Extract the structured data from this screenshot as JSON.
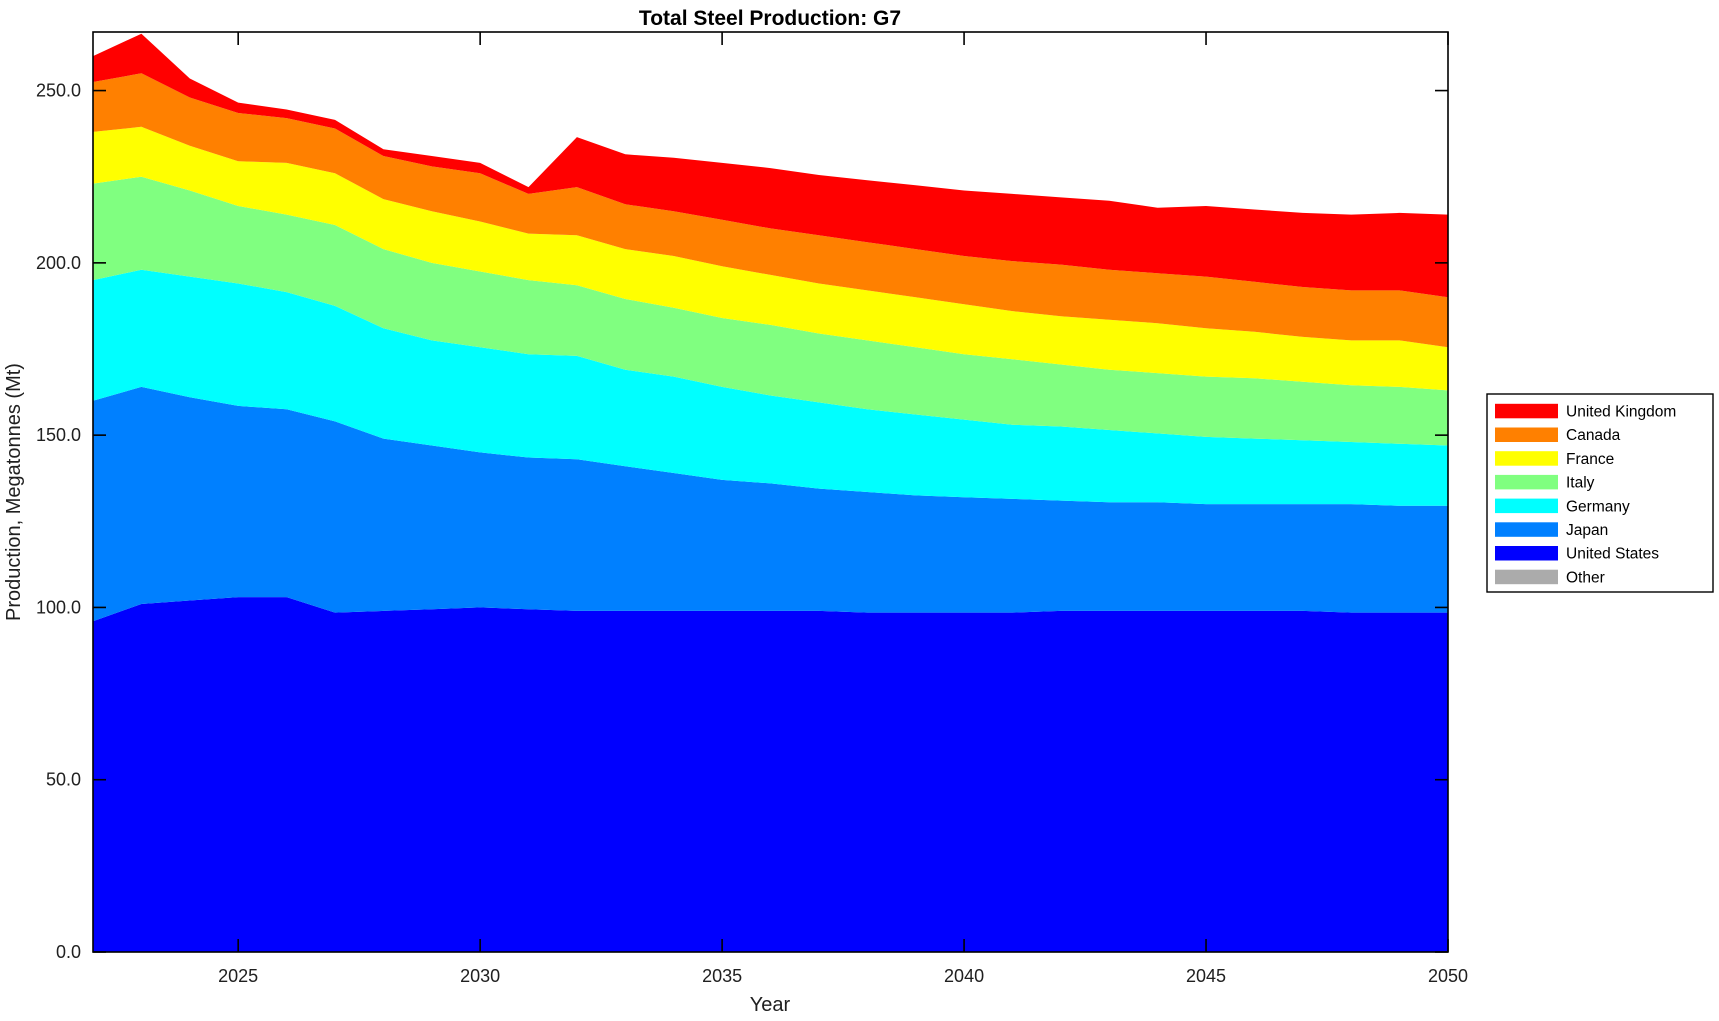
{
  "page": {
    "background": "#FFFFFF",
    "frame_color": "#000000",
    "tick_label_color": "#202020"
  },
  "chart_data": {
    "type": "area",
    "stacked": true,
    "title": "Total Steel Production: G7",
    "xlabel": "Year",
    "ylabel": "Production, Megatonnes (Mt)",
    "xlim": [
      2022,
      2050
    ],
    "ylim": [
      0,
      267
    ],
    "x_ticks": [
      2025,
      2030,
      2035,
      2040,
      2045,
      2050
    ],
    "y_ticks": [
      0,
      50,
      100,
      150,
      200,
      250
    ],
    "y_tick_decimals": 1,
    "grid": false,
    "legend_position": "right-outside",
    "x": [
      2022,
      2023,
      2024,
      2025,
      2026,
      2027,
      2028,
      2029,
      2030,
      2031,
      2032,
      2033,
      2034,
      2035,
      2036,
      2037,
      2038,
      2039,
      2040,
      2041,
      2042,
      2043,
      2044,
      2045,
      2046,
      2047,
      2048,
      2049,
      2050
    ],
    "stack_order_bottom_to_top": [
      "United States",
      "Japan",
      "Germany",
      "Italy",
      "France",
      "Canada",
      "United Kingdom",
      "Other"
    ],
    "series": [
      {
        "name": "United Kingdom",
        "color": "#FF0000",
        "values": [
          7.5,
          11.5,
          5.5,
          3,
          2.5,
          2.5,
          2,
          3,
          3,
          2,
          14.5,
          14.5,
          15.5,
          16.5,
          17.5,
          17.5,
          18,
          18.5,
          19,
          19.5,
          19.5,
          20,
          19,
          20.5,
          21,
          21.5,
          22,
          22.5,
          24
        ]
      },
      {
        "name": "Canada",
        "color": "#FF8000",
        "values": [
          14.5,
          15.5,
          14,
          14,
          13,
          13,
          12.5,
          13,
          14,
          11.5,
          14,
          13,
          13,
          13.5,
          13.5,
          14,
          14,
          14,
          14,
          14.5,
          15,
          14.5,
          14.5,
          15,
          14.5,
          14.5,
          14.5,
          14.5,
          14.5
        ]
      },
      {
        "name": "France",
        "color": "#FFFF00",
        "values": [
          15,
          14.5,
          13,
          13,
          15,
          15,
          14.5,
          15,
          14.5,
          13.5,
          14.5,
          14.5,
          15,
          15,
          14.5,
          14.5,
          14.5,
          14.5,
          14.5,
          14,
          14,
          14.5,
          14.5,
          14,
          13.5,
          13,
          13,
          13.5,
          12.5
        ]
      },
      {
        "name": "Italy",
        "color": "#80FF80",
        "values": [
          28,
          27,
          25,
          22.5,
          22.5,
          23.5,
          23,
          22.5,
          22,
          21.5,
          20.5,
          20.5,
          20,
          20,
          20.5,
          20,
          20,
          19.5,
          19,
          19,
          18,
          17.5,
          17.5,
          17.5,
          17.5,
          17,
          16.5,
          16.5,
          16
        ]
      },
      {
        "name": "Germany",
        "color": "#00FFFF",
        "values": [
          35,
          34,
          35,
          35.5,
          34,
          33.5,
          32,
          30.5,
          30.5,
          30,
          30,
          28,
          28,
          27,
          25.5,
          25,
          24,
          23.5,
          22.5,
          21.5,
          21.5,
          21,
          20,
          19.5,
          19,
          18.5,
          18,
          18,
          17.5
        ]
      },
      {
        "name": "Japan",
        "color": "#0080FF",
        "values": [
          64,
          63,
          59,
          55.5,
          54.5,
          55.5,
          50,
          47.5,
          45,
          44,
          44,
          42,
          40,
          38,
          37,
          35.5,
          35,
          34,
          33.5,
          33,
          32,
          31.5,
          31.5,
          31,
          31,
          31,
          31.5,
          31,
          31
        ]
      },
      {
        "name": "United States",
        "color": "#0000FF",
        "values": [
          96,
          101,
          102,
          103,
          103,
          98.5,
          99,
          99.5,
          100,
          99.5,
          99,
          99,
          99,
          99,
          99,
          99,
          98.5,
          98.5,
          98.5,
          98.5,
          99,
          99,
          99,
          99,
          99,
          99,
          98.5,
          98.5,
          98.5
        ]
      },
      {
        "name": "Other",
        "color": "#ABABAB",
        "values": [
          0,
          0,
          0,
          0,
          0,
          0,
          0,
          0,
          0,
          0,
          0,
          0,
          0,
          0,
          0,
          0,
          0,
          0,
          0,
          0,
          0,
          0,
          0,
          0,
          0,
          0,
          0,
          0,
          0
        ]
      }
    ]
  }
}
